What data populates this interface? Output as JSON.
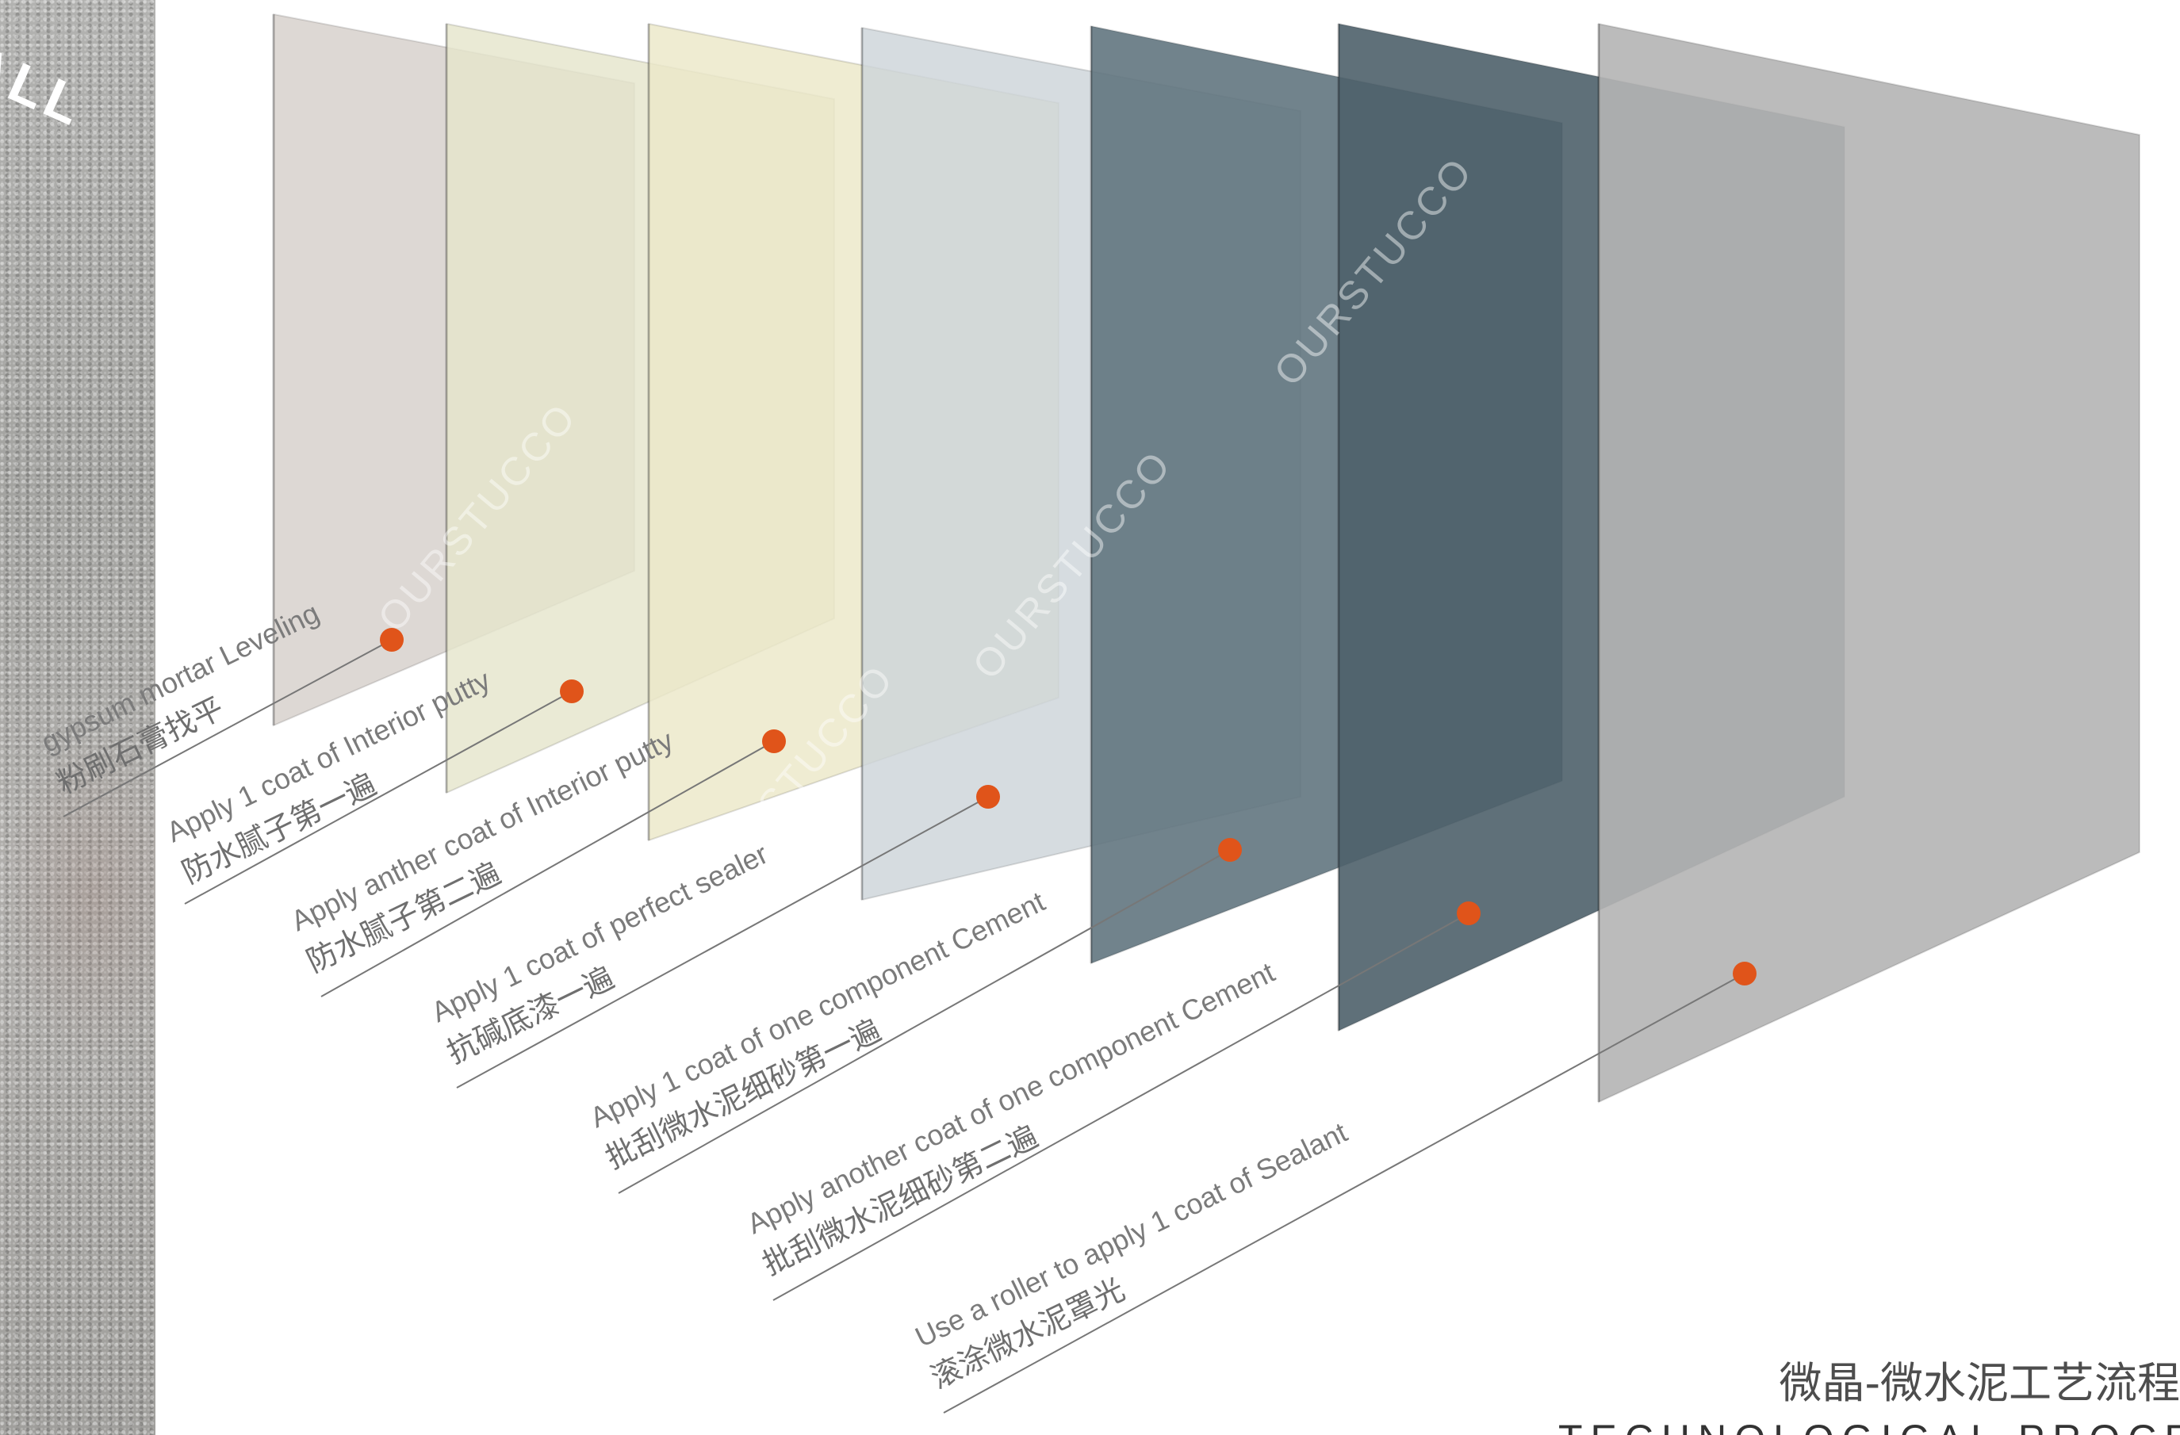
{
  "corner_text": "ALL",
  "watermark": "OURSTUCCO",
  "title": {
    "cn": "微晶-微水泥工艺流程",
    "en": "TECHNOLOGICAL PROCESS"
  },
  "colors": {
    "accent_dot": "#e0541a",
    "leader_line": "#777777"
  },
  "layers": [
    {
      "en": "gypsum mortar Leveling",
      "cn": "粉刷石膏找平",
      "color": "#d6d0ca"
    },
    {
      "en": "Apply 1 coat of Interior putty",
      "cn": "防水腻子第一遍",
      "color": "#e5e5cc"
    },
    {
      "en": "Apply  anther coat of Interior putty",
      "cn": "防水腻子第二遍",
      "color": "#ebe8c8"
    },
    {
      "en": "Apply 1 coat of perfect sealer",
      "cn": "抗碱底漆一遍",
      "color": "#cdd4d9"
    },
    {
      "en": "Apply 1 coat of  one component Cement",
      "cn": "批刮微水泥细砂第一遍",
      "color": "#627680"
    },
    {
      "en": "Apply another coat of  one component Cement",
      "cn": "批刮微水泥细砂第二遍",
      "color": "#4e606a"
    },
    {
      "en": "Use a roller to apply 1 coat of Sealant",
      "cn": "滚涂微水泥罩光",
      "color": "#b4b4b4"
    }
  ]
}
